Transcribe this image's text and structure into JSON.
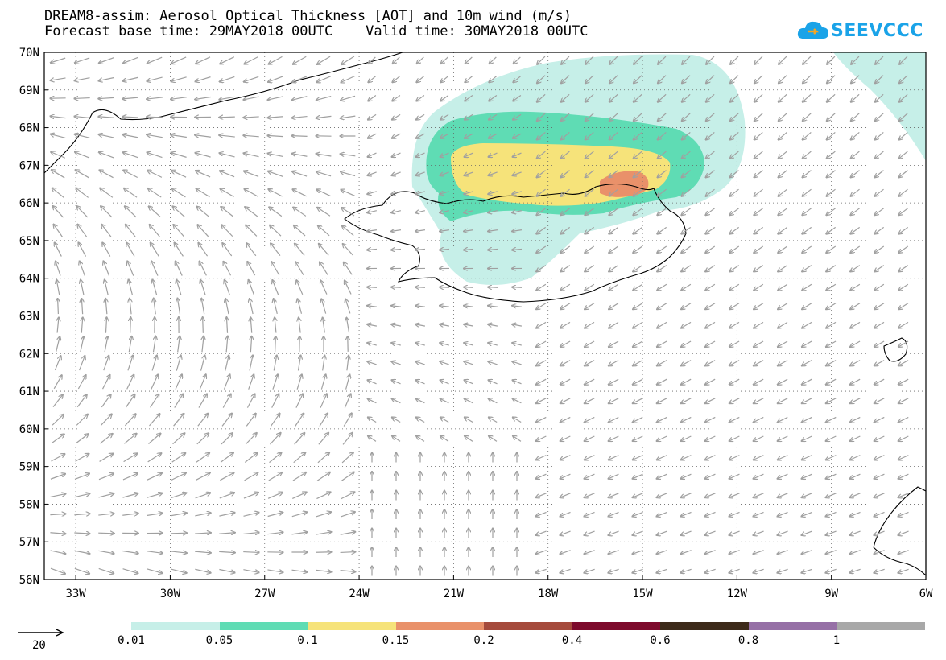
{
  "header": {
    "line1": "DREAM8-assim: Aerosol Optical Thickness [AOT] and 10m wind (m/s)",
    "line2": "Forecast base time: 29MAY2018 00UTC    Valid time: 30MAY2018 00UTC"
  },
  "logo": {
    "text": "SEEVCCC",
    "icon": "cloud-icon"
  },
  "map": {
    "lat_labels": [
      "70N",
      "69N",
      "68N",
      "67N",
      "66N",
      "65N",
      "64N",
      "63N",
      "62N",
      "61N",
      "60N",
      "59N",
      "58N",
      "57N",
      "56N"
    ],
    "lon_labels": [
      "33W",
      "30W",
      "27W",
      "24W",
      "21W",
      "18W",
      "15W",
      "12W",
      "9W",
      "6W"
    ],
    "lat_range": [
      56,
      70
    ],
    "lon_range": [
      -34,
      -6
    ],
    "grid": "dotted",
    "wind_arrow_color": "#a0a0a0"
  },
  "legend": {
    "ref_vector_value": "20",
    "bins": [
      {
        "label": "0.01",
        "color": "#c6efe8"
      },
      {
        "label": "0.05",
        "color": "#5fdcb4"
      },
      {
        "label": "0.1",
        "color": "#f6e37a"
      },
      {
        "label": "0.15",
        "color": "#e9916a"
      },
      {
        "label": "0.2",
        "color": "#a54a3c"
      },
      {
        "label": "0.4",
        "color": "#7d0a2c"
      },
      {
        "label": "0.6",
        "color": "#3d2a1a"
      },
      {
        "label": "0.8",
        "color": "#9670a6"
      },
      {
        "label": "1",
        "color": "#a8a8a8"
      }
    ]
  }
}
